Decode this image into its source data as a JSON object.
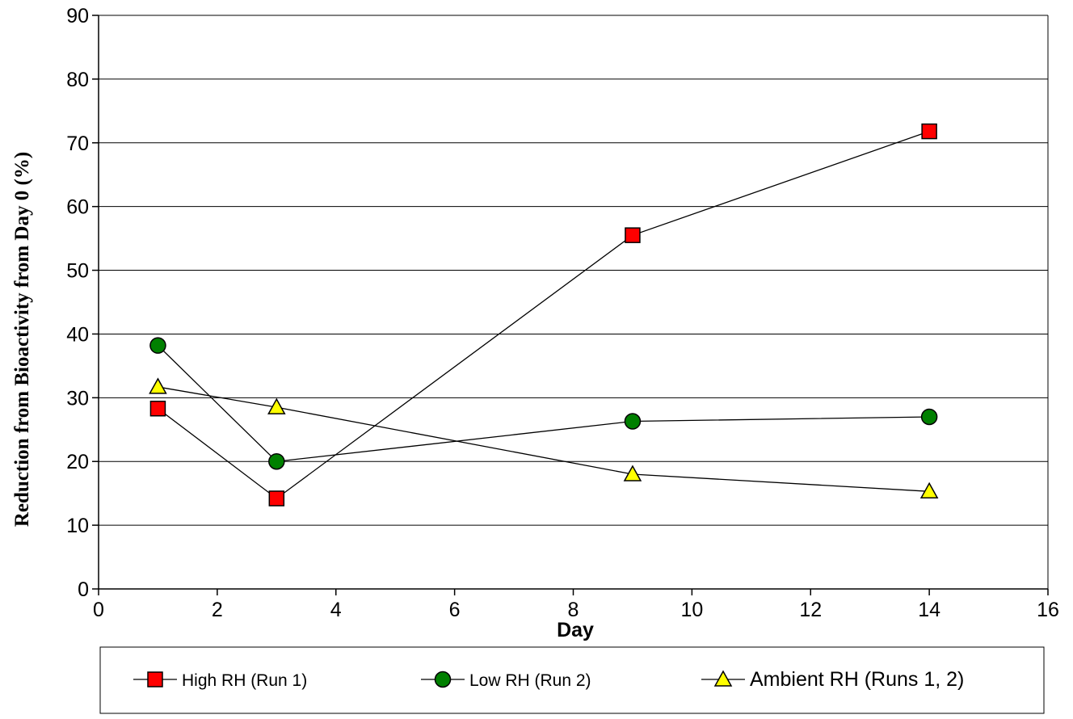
{
  "chart_data": {
    "type": "line",
    "xlabel": "Day",
    "ylabel": "Reduction from Bioactivity from Day 0 (%)",
    "xlim": [
      0,
      16
    ],
    "ylim": [
      0,
      90
    ],
    "x_ticks": [
      "0",
      "2",
      "4",
      "6",
      "8",
      "10",
      "12",
      "14",
      "16"
    ],
    "y_ticks": [
      "0",
      "10",
      "20",
      "30",
      "40",
      "50",
      "60",
      "70",
      "80",
      "90"
    ],
    "grid": "horizontal",
    "legend_position": "bottom",
    "series": [
      {
        "name": "High RH (Run 1)",
        "marker": "square",
        "color": "#ff0000",
        "x": [
          1,
          3,
          9,
          14
        ],
        "y": [
          28.3,
          14.2,
          55.5,
          71.8
        ]
      },
      {
        "name": "Low RH (Run 2)",
        "marker": "circle",
        "color": "#008000",
        "x": [
          1,
          3,
          9,
          14
        ],
        "y": [
          38.2,
          20.0,
          26.3,
          27.0
        ]
      },
      {
        "name": "Ambient RH (Runs 1, 2)",
        "marker": "triangle",
        "color": "#ffff00",
        "x": [
          1,
          3,
          9,
          14
        ],
        "y": [
          31.7,
          28.5,
          18.0,
          15.3
        ]
      }
    ]
  }
}
